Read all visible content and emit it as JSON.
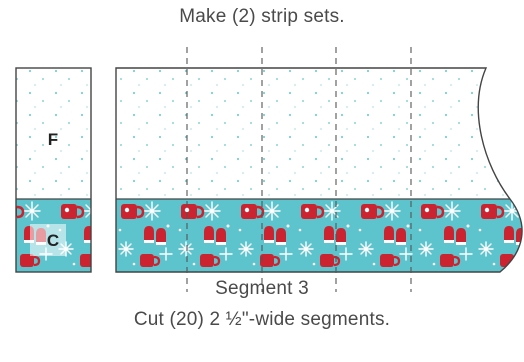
{
  "instruction_top": "Make (2) strip sets.",
  "segment_label": "Segment 3",
  "instruction_bottom": "Cut (20) 2 ½\"-wide segments.",
  "fabrics": {
    "top_letter": "F",
    "bottom_letter": "C",
    "top_fabric": "white with aqua dots",
    "bottom_fabric": "aqua with red mugs, mittens and snowflakes"
  },
  "cut_lines": 4,
  "colors": {
    "aqua": "#5dc3cc",
    "red": "#cc2330",
    "outline": "#444444",
    "dot": "#7ccfd4",
    "text": "#4a4a4a"
  }
}
